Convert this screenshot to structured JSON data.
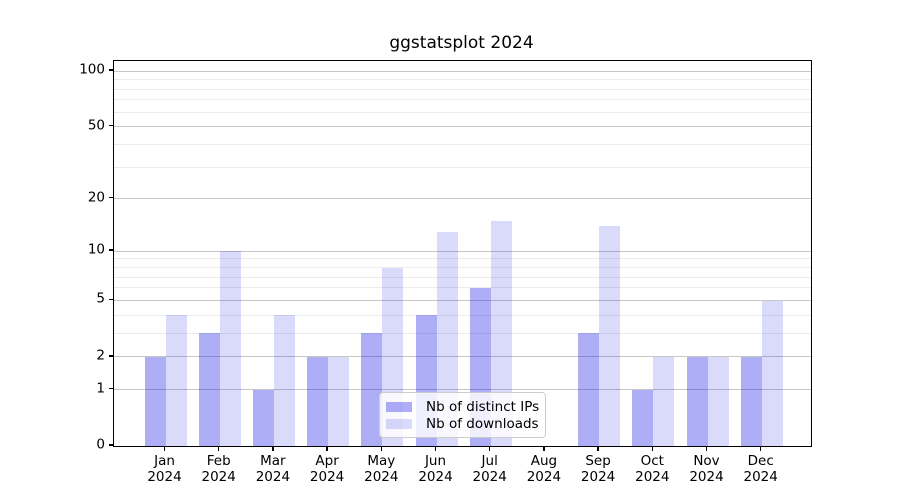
{
  "title": "ggstatsplot 2024",
  "chart_data": {
    "type": "bar",
    "title": "ggstatsplot 2024",
    "categories": [
      "Jan",
      "Feb",
      "Mar",
      "Apr",
      "May",
      "Jun",
      "Jul",
      "Aug",
      "Sep",
      "Oct",
      "Nov",
      "Dec"
    ],
    "category_year": "2024",
    "series": [
      {
        "name": "Nb of distinct IPs",
        "base_color": "#1e1ee6",
        "alpha": 0.36,
        "values": [
          2,
          3,
          1,
          2,
          3,
          4,
          6,
          0,
          3,
          1,
          2,
          2
        ]
      },
      {
        "name": "Nb of downloads",
        "base_color": "#1e1ee6",
        "alpha": 0.165,
        "values": [
          4,
          10,
          4,
          2,
          8,
          13,
          15,
          0,
          14,
          2,
          2,
          5
        ]
      }
    ],
    "yscale": "log1p",
    "ylim": [
      0,
      113.4
    ],
    "yticks_major": [
      0,
      1,
      2,
      5,
      10,
      20,
      50,
      100
    ],
    "ytick_labels": [
      "0",
      "1",
      "2",
      "5",
      "10",
      "20",
      "50",
      "100"
    ],
    "yticks_minor": [
      3,
      4,
      6,
      7,
      8,
      9,
      30,
      40,
      60,
      70,
      80,
      90
    ],
    "xlabel": "",
    "ylabel": "",
    "grid": true,
    "legend_position": "lower center",
    "colors": {
      "grid_major": "#c6c6c6",
      "grid_minor": "#ebebeb",
      "spine": "#000000",
      "legend_border": "#cccccc",
      "bar_dark_on_white": "#aeaef6",
      "bar_light_on_white": "#dadaf9"
    }
  }
}
